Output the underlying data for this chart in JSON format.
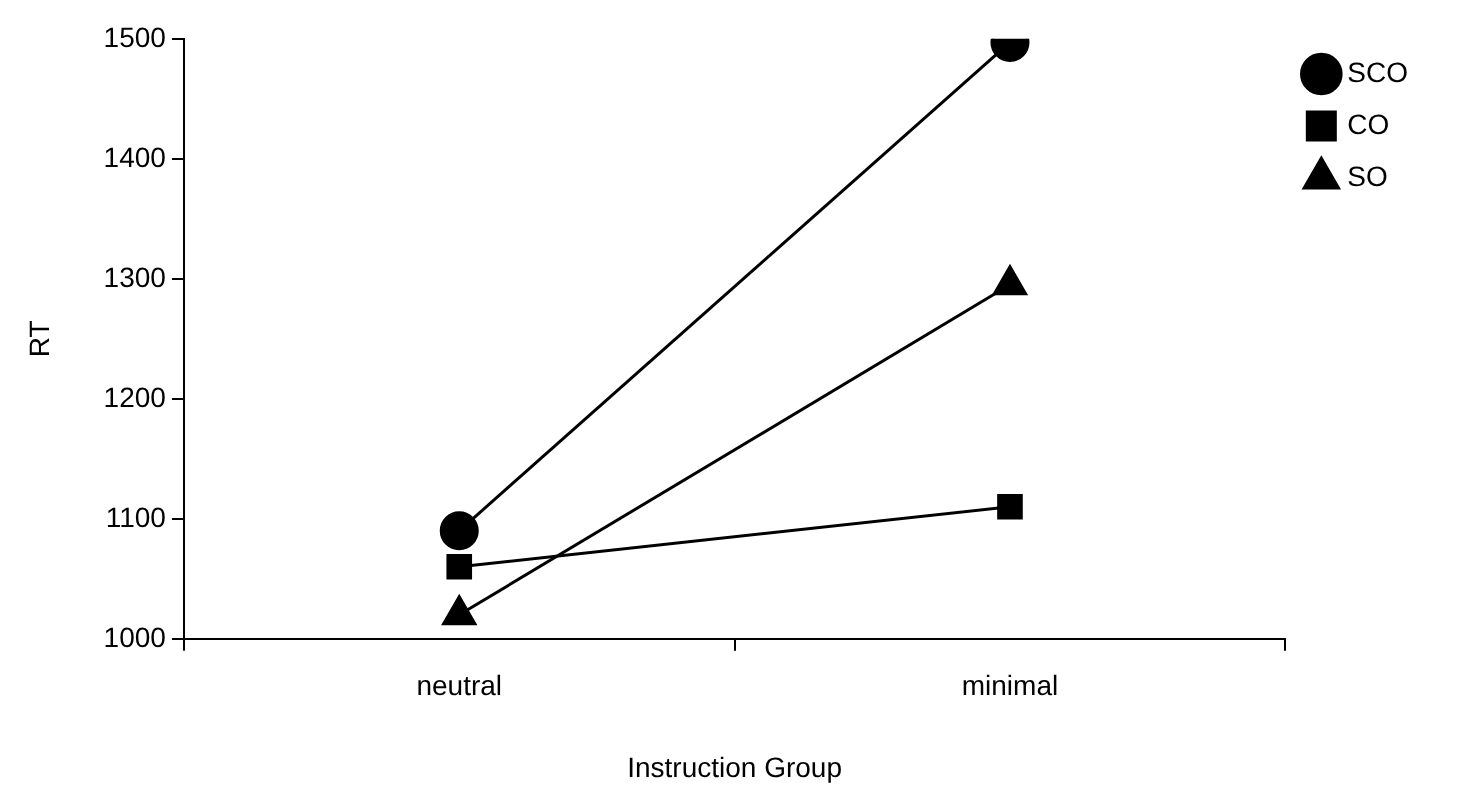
{
  "chart_data": {
    "type": "line",
    "xlabel": "Instruction Group",
    "ylabel": "RT",
    "categories": [
      "neutral",
      "minimal"
    ],
    "series": [
      {
        "name": "SCO",
        "color": "#000000",
        "marker": "circle",
        "values": [
          1090,
          1497
        ]
      },
      {
        "name": "CO",
        "color": "#000000",
        "marker": "square",
        "values": [
          1060,
          1110
        ]
      },
      {
        "name": "SO",
        "color": "#000000",
        "marker": "triangle",
        "values": [
          1020,
          1295
        ]
      }
    ],
    "ylim": [
      1000,
      1500
    ],
    "yticks": [
      1000,
      1100,
      1200,
      1300,
      1400,
      1500
    ],
    "grid": false,
    "legend": "top right",
    "line_style": "solid"
  }
}
